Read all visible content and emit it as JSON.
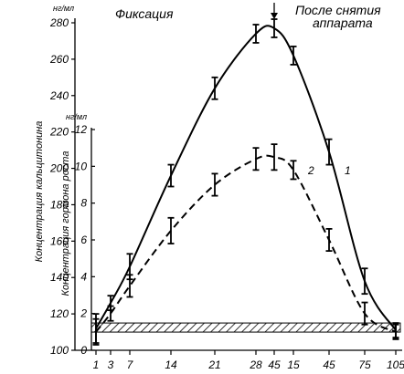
{
  "chart_data": {
    "type": "line",
    "header_left": "Фиксация",
    "header_right_line1": "После снятия",
    "header_right_line2": "аппарата",
    "x_ticks": [
      "1",
      "3",
      "7",
      "14",
      "21",
      "28",
      "45",
      "15",
      "45",
      "75",
      "105"
    ],
    "y1": {
      "label": "Концентрация кальцитонина",
      "unit": "нг/мл",
      "ticks": [
        "100",
        "120",
        "140",
        "160",
        "180",
        "200",
        "220",
        "240",
        "260",
        "280"
      ],
      "range": [
        100,
        280
      ]
    },
    "y2": {
      "label": "Концентрация гормона роста",
      "unit": "нг/мл",
      "ticks": [
        "0",
        "2",
        "4",
        "6",
        "8",
        "10",
        "12"
      ],
      "range": [
        0,
        12
      ]
    },
    "series": [
      {
        "name": "1",
        "axis": "y1",
        "style": "solid",
        "points": [
          {
            "x": "1",
            "y": 112,
            "err": 8
          },
          {
            "x": "3",
            "y": 126,
            "err": 4
          },
          {
            "x": "7",
            "y": 146,
            "err": 7
          },
          {
            "x": "14",
            "y": 196,
            "err": 6
          },
          {
            "x": "21",
            "y": 244,
            "err": 6
          },
          {
            "x": "28",
            "y": 274,
            "err": 5
          },
          {
            "x": "45",
            "y": 277,
            "err": 5
          },
          {
            "x": "15",
            "y": 262,
            "err": 5
          },
          {
            "x": "45",
            "y": 209,
            "err": 7
          },
          {
            "x": "75",
            "y": 138,
            "err": 7
          },
          {
            "x": "105",
            "y": 111,
            "err": 4
          }
        ]
      },
      {
        "name": "2",
        "axis": "y2",
        "style": "dashed",
        "points": [
          {
            "x": "1",
            "y": 1.0,
            "err": 0.7
          },
          {
            "x": "3",
            "y": 2.0,
            "err": 0.4
          },
          {
            "x": "7",
            "y": 3.5,
            "err": 0.6
          },
          {
            "x": "14",
            "y": 6.5,
            "err": 0.7
          },
          {
            "x": "21",
            "y": 9.0,
            "err": 0.6
          },
          {
            "x": "28",
            "y": 10.4,
            "err": 0.6
          },
          {
            "x": "45",
            "y": 10.5,
            "err": 0.7
          },
          {
            "x": "15",
            "y": 9.8,
            "err": 0.5
          },
          {
            "x": "45",
            "y": 6.0,
            "err": 0.6
          },
          {
            "x": "75",
            "y": 2.0,
            "err": 0.6
          },
          {
            "x": "105",
            "y": 1.0,
            "err": 0.4
          }
        ]
      }
    ],
    "baseline_band": {
      "from": 110,
      "to": 115,
      "axis": "y1"
    },
    "marker_arrow_at": "45"
  }
}
